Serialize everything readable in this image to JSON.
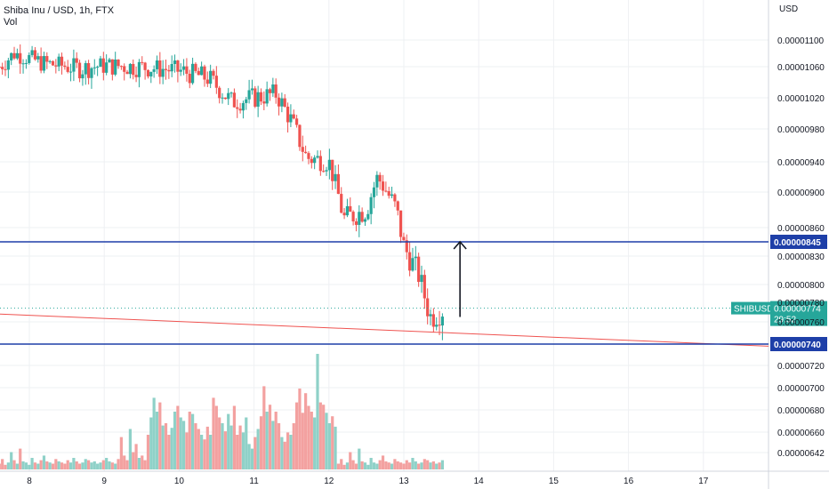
{
  "header": {
    "symbol_title": "Shiba Inu / USD, 1h, FTX",
    "volume_label": "Vol"
  },
  "chart_data": {
    "type": "candlestick",
    "currency_label": "USD",
    "y_ticks": [
      "0.00001100",
      "0.00001060",
      "0.00001020",
      "0.00000980",
      "0.00000940",
      "0.00000900",
      "0.00000860",
      "0.00000830",
      "0.00000800",
      "0.00000780",
      "0.00000760",
      "0.00000720",
      "0.00000700",
      "0.00000680",
      "0.00000660",
      "0.00000642"
    ],
    "x_ticks": [
      "8",
      "9",
      "10",
      "11",
      "12",
      "13",
      "14",
      "15",
      "16",
      "17"
    ],
    "ohlc_keypoints": [
      {
        "x": 7.6,
        "price": 1.06e-05
      },
      {
        "x": 7.8,
        "price": 1.08e-05
      },
      {
        "x": 8.2,
        "price": 1.065e-05
      },
      {
        "x": 8.7,
        "price": 1.058e-05
      },
      {
        "x": 9.0,
        "price": 1.062e-05
      },
      {
        "x": 9.5,
        "price": 1.06e-05
      },
      {
        "x": 10.0,
        "price": 1.055e-05
      },
      {
        "x": 10.4,
        "price": 1.045e-05
      },
      {
        "x": 10.7,
        "price": 1.015e-05
      },
      {
        "x": 11.0,
        "price": 1.02e-05
      },
      {
        "x": 11.3,
        "price": 1.025e-05
      },
      {
        "x": 11.5,
        "price": 9.9e-06
      },
      {
        "x": 11.7,
        "price": 9.45e-06
      },
      {
        "x": 12.0,
        "price": 9.4e-06
      },
      {
        "x": 12.2,
        "price": 8.7e-06
      },
      {
        "x": 12.5,
        "price": 8.8e-06
      },
      {
        "x": 12.65,
        "price": 9.2e-06
      },
      {
        "x": 12.9,
        "price": 8.8e-06
      },
      {
        "x": 13.0,
        "price": 8.4e-06
      },
      {
        "x": 13.2,
        "price": 8.1e-06
      },
      {
        "x": 13.35,
        "price": 7.65e-06
      },
      {
        "x": 13.55,
        "price": 7.74e-06
      }
    ],
    "volume_relative": [
      0.05,
      0.09,
      0.04,
      0.06,
      0.15,
      0.08,
      0.05,
      0.18,
      0.07,
      0.06,
      0.04,
      0.1,
      0.06,
      0.05,
      0.08,
      0.12,
      0.07,
      0.06,
      0.05,
      0.09,
      0.07,
      0.06,
      0.05,
      0.08,
      0.06,
      0.1,
      0.07,
      0.05,
      0.06,
      0.09,
      0.08,
      0.06,
      0.07,
      0.05,
      0.06,
      0.08,
      0.1,
      0.07,
      0.06,
      0.05,
      0.09,
      0.28,
      0.12,
      0.08,
      0.35,
      0.15,
      0.22,
      0.1,
      0.12,
      0.08,
      0.3,
      0.45,
      0.62,
      0.5,
      0.58,
      0.38,
      0.4,
      0.3,
      0.36,
      0.5,
      0.55,
      0.45,
      0.42,
      0.32,
      0.5,
      0.48,
      0.4,
      0.35,
      0.3,
      0.26,
      0.37,
      0.3,
      0.62,
      0.55,
      0.45,
      0.4,
      0.33,
      0.48,
      0.38,
      0.55,
      0.3,
      0.38,
      0.32,
      0.45,
      0.22,
      0.18,
      0.28,
      0.35,
      0.46,
      0.72,
      0.5,
      0.56,
      0.42,
      0.5,
      0.4,
      0.28,
      0.24,
      0.32,
      0.3,
      0.4,
      0.58,
      0.7,
      0.49,
      0.66,
      0.55,
      0.5,
      0.45,
      1.0,
      0.58,
      0.56,
      0.49,
      0.4,
      0.46,
      0.37
    ],
    "horizontal_levels": [
      {
        "label": "0.00000845",
        "color": "#1E3FA8"
      },
      {
        "label": "0.00000740",
        "color": "#1E3FA8"
      }
    ],
    "price_badge": {
      "symbol": "SHIBUSD",
      "price": "0.00000774",
      "countdown": "29:52",
      "color": "#26a69a"
    },
    "trendline": {
      "color": "#ef5350",
      "from": {
        "x": 7.6,
        "price": 7.68e-06
      },
      "to": {
        "x": 17.8,
        "price": 7.38e-06
      }
    },
    "arrow": {
      "color": "#131722",
      "from_price": 7.65e-06,
      "to_price": 8.45e-06,
      "x": 13.75
    },
    "colors": {
      "up": "#26a69a",
      "down": "#ef5350",
      "up_vol": "#8fd1c8",
      "down_vol": "#f3a1a0",
      "grid": "#eef0f3"
    }
  }
}
